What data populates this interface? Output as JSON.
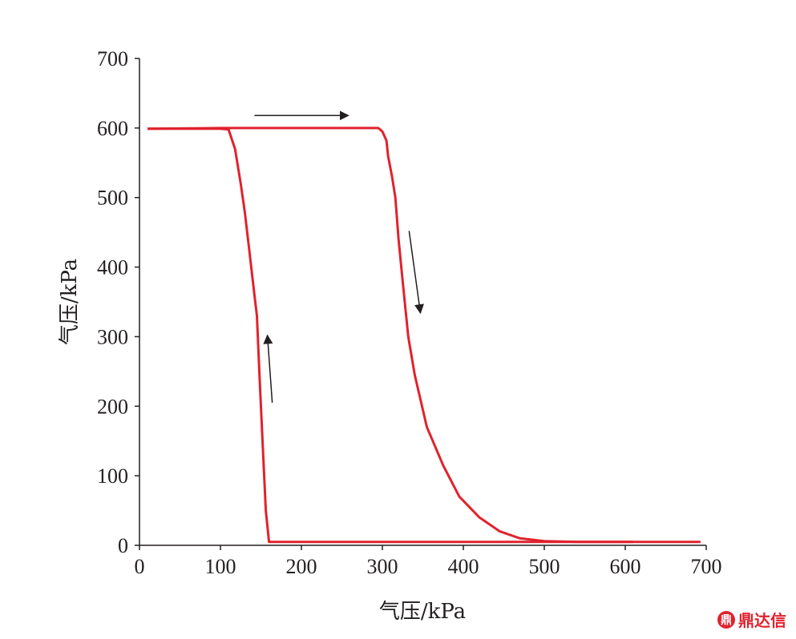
{
  "chart_data": {
    "type": "line",
    "xlabel": "气压/kPa",
    "ylabel": "气压/kPa",
    "xlim": [
      0,
      700
    ],
    "ylim": [
      0,
      700
    ],
    "xticks": [
      0,
      100,
      200,
      300,
      400,
      500,
      600,
      700
    ],
    "yticks": [
      0,
      100,
      200,
      300,
      400,
      500,
      600,
      700
    ],
    "grid": false,
    "line_color": "#e0222d",
    "series": [
      {
        "x": [
          10,
          100,
          200,
          295,
          300,
          305,
          307,
          312,
          316,
          320,
          325,
          332,
          340,
          355,
          375,
          395,
          420,
          445,
          470,
          500,
          540,
          580,
          610
        ],
        "y": [
          599,
          600,
          600,
          600,
          595,
          582,
          560,
          530,
          500,
          440,
          380,
          300,
          245,
          170,
          115,
          70,
          40,
          20,
          10,
          6,
          5,
          5,
          5
        ]
      },
      {
        "x": [
          693,
          400,
          200,
          160,
          156,
          152,
          148,
          145,
          142,
          135,
          130,
          125,
          118,
          110,
          100,
          10
        ],
        "y": [
          5,
          5,
          5,
          5,
          50,
          150,
          250,
          330,
          360,
          430,
          480,
          520,
          570,
          598,
          599,
          599
        ]
      }
    ],
    "arrows": [
      {
        "from": [
          142,
          618
        ],
        "to": [
          258,
          618
        ],
        "direction": "right"
      },
      {
        "from": [
          333,
          452
        ],
        "to": [
          347,
          334
        ],
        "direction": "down"
      },
      {
        "from": [
          164,
          205
        ],
        "to": [
          158,
          302
        ],
        "direction": "up"
      }
    ]
  },
  "watermark": {
    "logo_glyph": "鼎",
    "text": "鼎达信"
  }
}
